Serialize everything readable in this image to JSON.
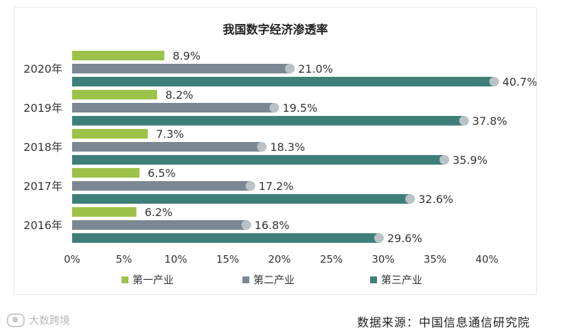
{
  "chart_data": {
    "type": "bar",
    "orientation": "horizontal",
    "title": "我国数字经济渗透率",
    "categories": [
      "2020年",
      "2019年",
      "2018年",
      "2017年",
      "2016年"
    ],
    "series": [
      {
        "name": "第一产业",
        "color": "#9dc24a",
        "values": [
          8.9,
          8.2,
          7.3,
          6.5,
          6.2
        ],
        "labels": [
          "8.9%",
          "8.2%",
          "7.3%",
          "6.5%",
          "6.2%"
        ]
      },
      {
        "name": "第二产业",
        "color": "#7b8894",
        "values": [
          21.0,
          19.5,
          18.3,
          17.2,
          16.8
        ],
        "labels": [
          "21.0%",
          "19.5%",
          "18.3%",
          "17.2%",
          "16.8%"
        ]
      },
      {
        "name": "第三产业",
        "color": "#3f7f7a",
        "values": [
          40.7,
          37.8,
          35.9,
          32.6,
          29.6
        ],
        "labels": [
          "40.7%",
          "37.8%",
          "35.9%",
          "32.6%",
          "29.6%"
        ]
      }
    ],
    "xlim": [
      0,
      40
    ],
    "xticks": [
      "0%",
      "5%",
      "10%",
      "15%",
      "20%",
      "25%",
      "30%",
      "35%",
      "40%"
    ],
    "legend_position": "bottom",
    "grid": false
  },
  "footer": {
    "source": "数据来源：中国信息通信研究院",
    "watermark": "大数跨境"
  }
}
